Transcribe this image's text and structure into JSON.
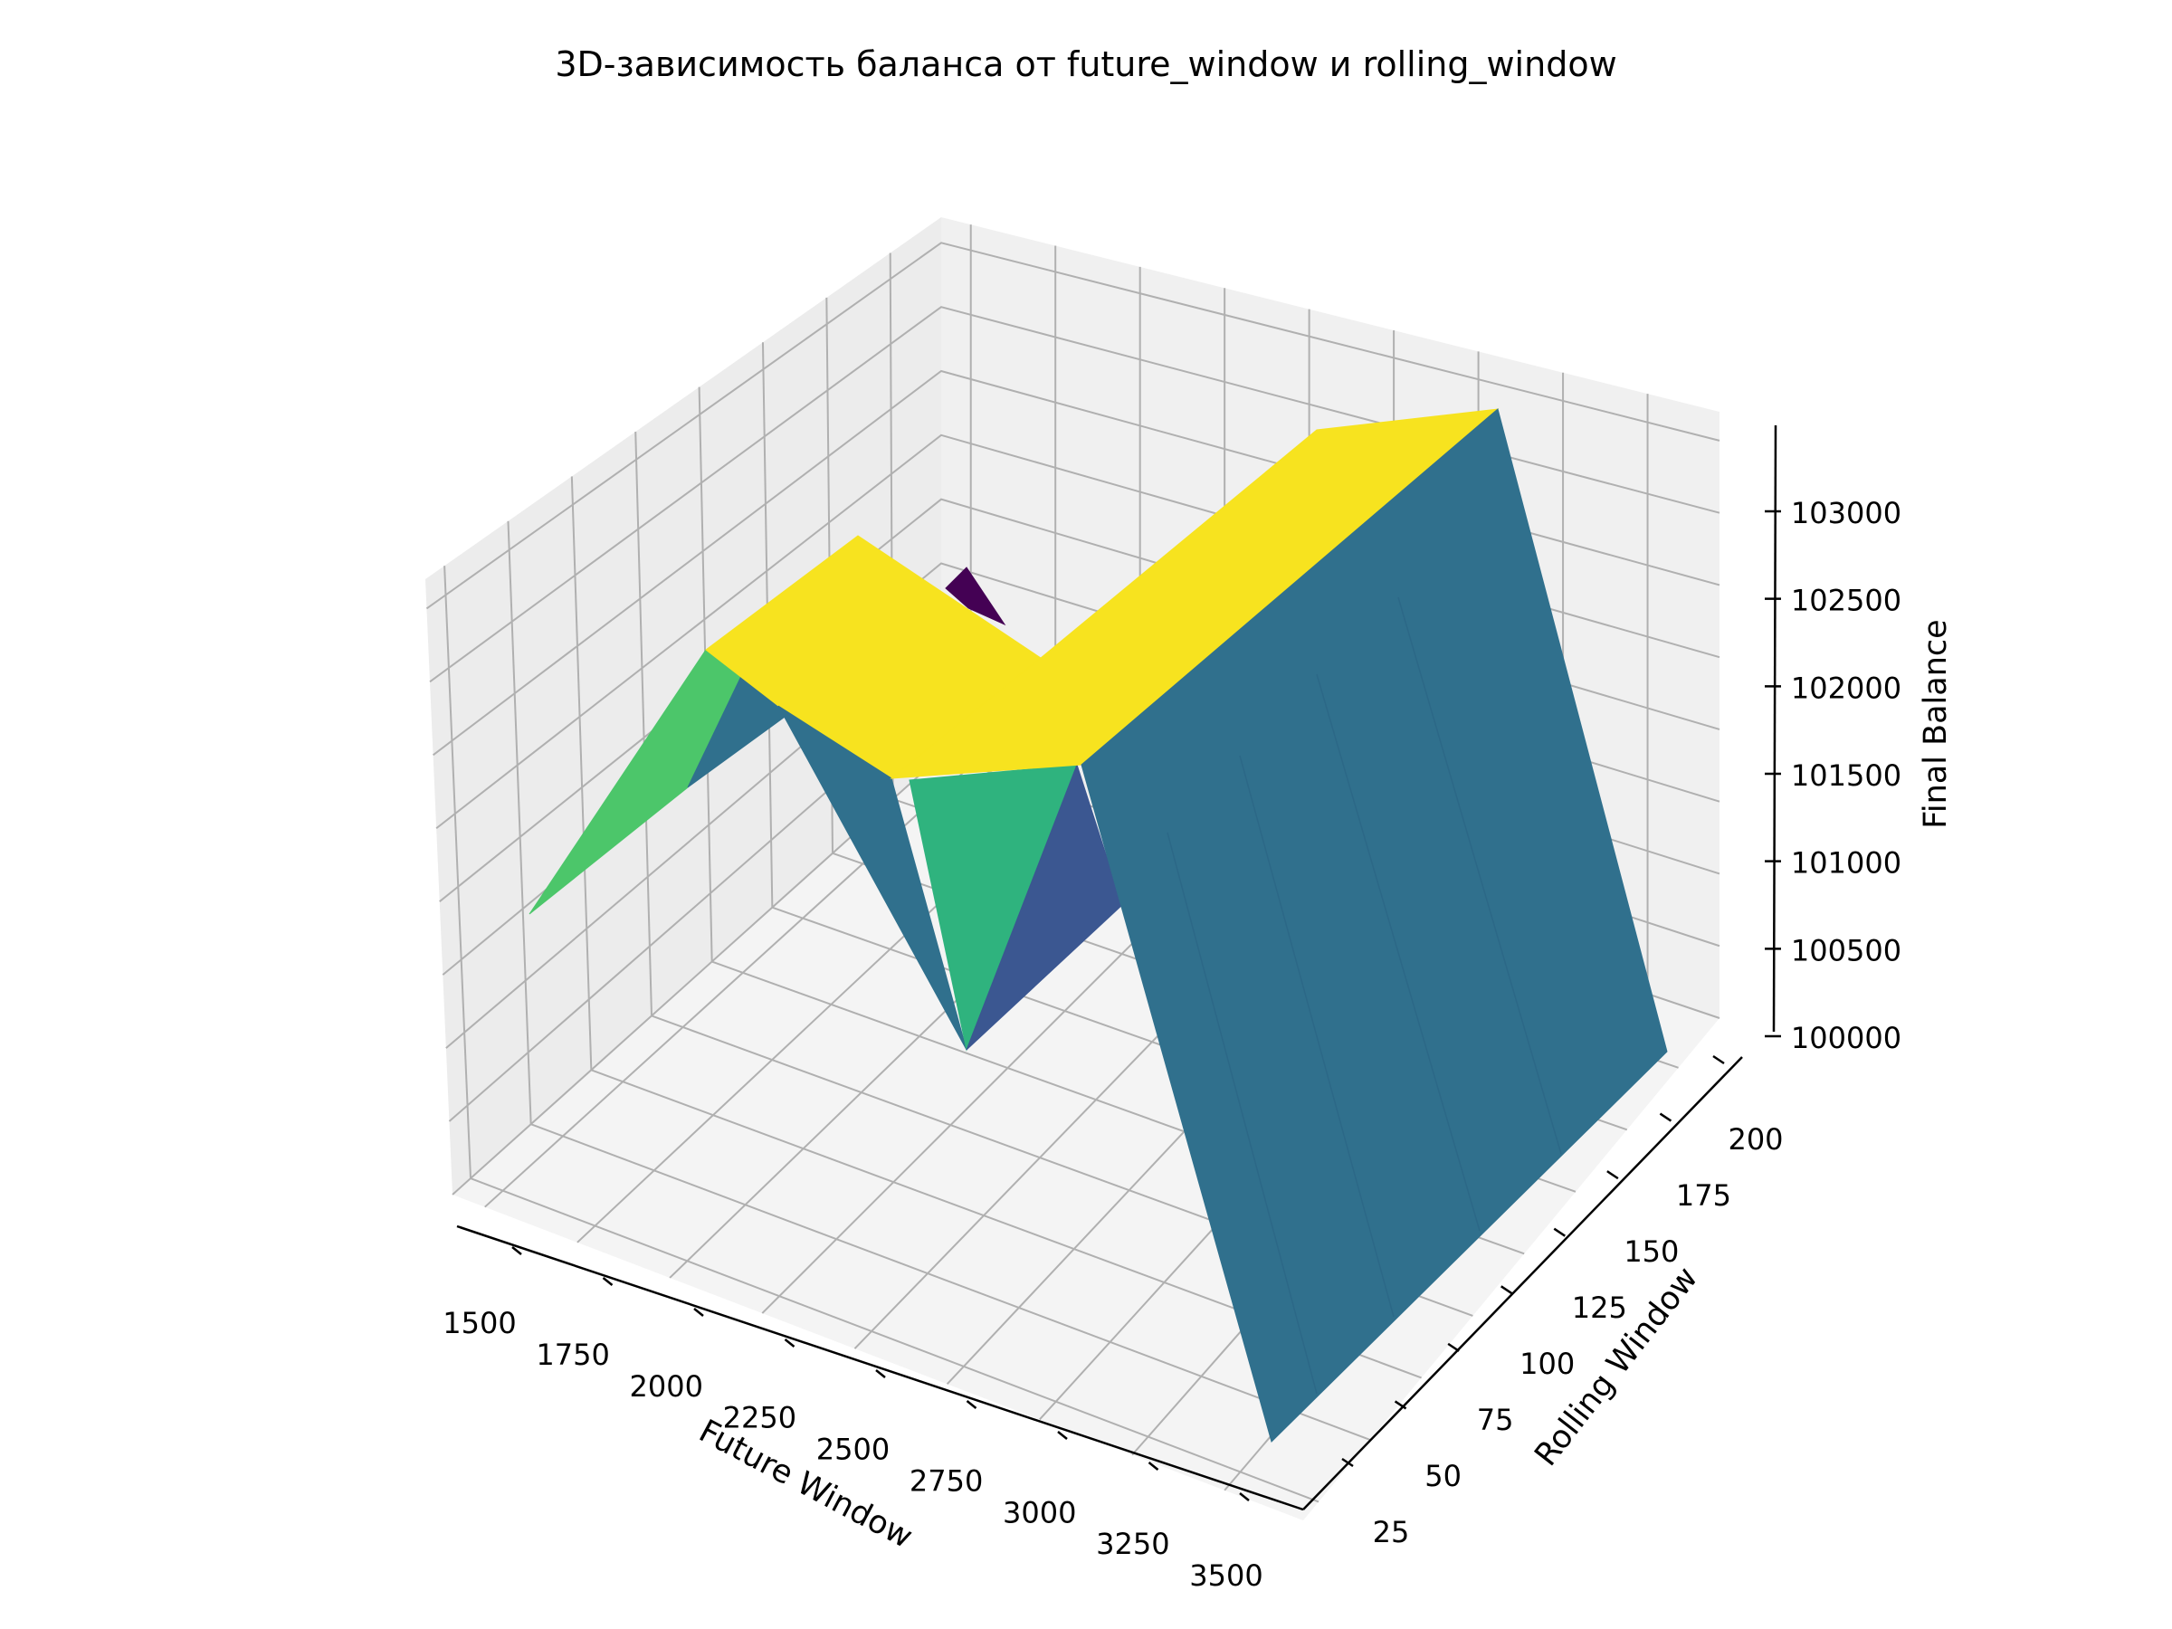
{
  "chart_data": {
    "type": "surface3d",
    "title": "3D-зависимость баланса от future_window и rolling_window",
    "xlabel": "Future Window",
    "ylabel": "Rolling Window",
    "zlabel": "Final Balance",
    "x_ticks": [
      "1500",
      "1750",
      "2000",
      "2250",
      "2500",
      "2750",
      "3000",
      "3250",
      "3500"
    ],
    "y_ticks": [
      "25",
      "50",
      "75",
      "100",
      "125",
      "150",
      "175",
      "200"
    ],
    "z_ticks": [
      "100000",
      "100500",
      "101000",
      "101500",
      "102000",
      "102500",
      "103000"
    ],
    "colormap": "viridis",
    "colors": {
      "pane_floor": "#f4f4f4",
      "pane_wall": "#ececec",
      "grid": "#b0b0b0",
      "yellow": "#f7e31f",
      "teal": "#30708d",
      "green_light": "#4cc66a",
      "green_mid": "#2fb37e",
      "indigo": "#3b5791",
      "purple": "#440154"
    },
    "note_grid": true
  }
}
